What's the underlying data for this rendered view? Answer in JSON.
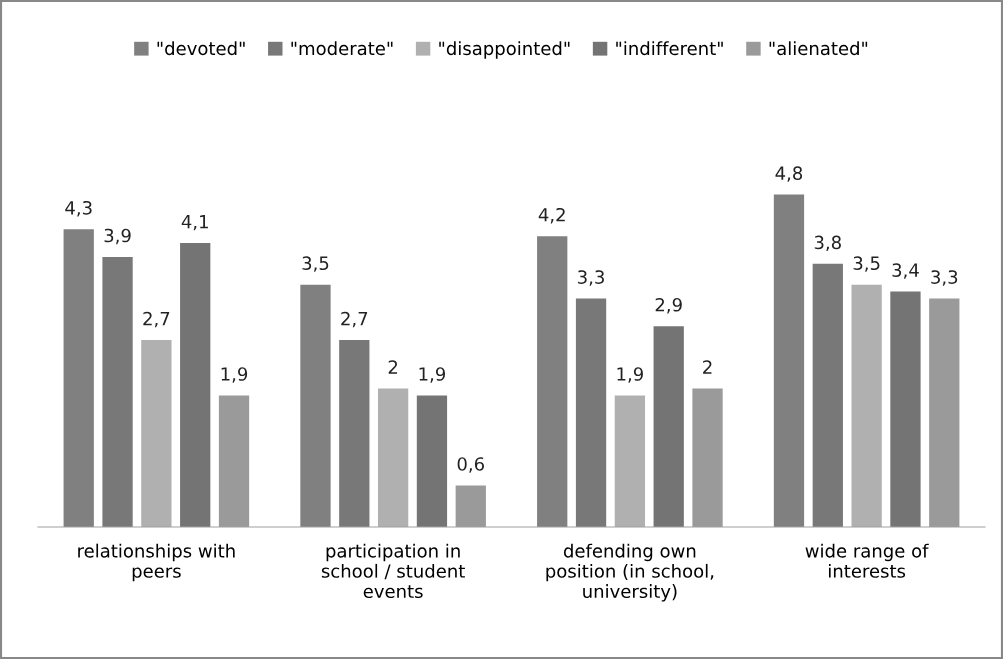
{
  "chart_data": {
    "type": "bar",
    "categories": [
      "relationships with\npeers",
      "participation in\nschool / student\nevents",
      "defending own\nposition (in school,\nuniversity)",
      "wide range of\ninterests"
    ],
    "series": [
      {
        "name": "\"devoted\"",
        "color": "#808080",
        "values": [
          4.3,
          3.5,
          4.2,
          4.8
        ],
        "value_labels": [
          "4,3",
          "3,5",
          "4,2",
          "4,8"
        ]
      },
      {
        "name": "\"moderate\"",
        "color": "#787878",
        "values": [
          3.9,
          2.7,
          3.3,
          3.8
        ],
        "value_labels": [
          "3,9",
          "2,7",
          "3,3",
          "3,8"
        ]
      },
      {
        "name": "\"disappointed\"",
        "color": "#b0b0b0",
        "values": [
          2.7,
          2.0,
          1.9,
          3.5
        ],
        "value_labels": [
          "2,7",
          "2",
          "1,9",
          "3,5"
        ]
      },
      {
        "name": "\"indifferent\"",
        "color": "#747474",
        "values": [
          4.1,
          1.9,
          2.9,
          3.4
        ],
        "value_labels": [
          "4,1",
          "1,9",
          "2,9",
          "3,4"
        ]
      },
      {
        "name": "\"alienated\"",
        "color": "#9a9a9a",
        "values": [
          1.9,
          0.6,
          2.0,
          3.3
        ],
        "value_labels": [
          "1,9",
          "0,6",
          "2",
          "3,3"
        ]
      }
    ],
    "legend": "top"
  }
}
